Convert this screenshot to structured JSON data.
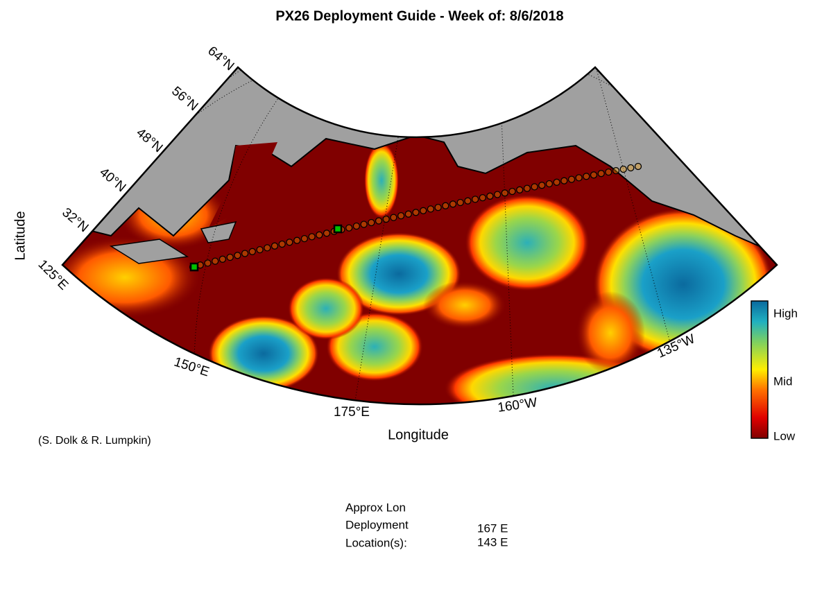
{
  "title": "PX26 Deployment Guide - Week of: 8/6/2018",
  "map": {
    "x_label": "Longitude",
    "y_label": "Latitude",
    "lat_labels": [
      "32°N",
      "40°N",
      "48°N",
      "56°N",
      "64°N"
    ],
    "lon_labels": [
      "125°E",
      "150°E",
      "175°E",
      "160°W",
      "135°W"
    ],
    "colorbar": [
      "High",
      "Mid",
      "Low"
    ]
  },
  "credit": "(S. Dolk & R. Lumpkin)",
  "deployment": {
    "heading": [
      "Approx Lon",
      "Deployment",
      "Location(s):"
    ],
    "locations": [
      "167 E",
      "143 E"
    ]
  }
}
